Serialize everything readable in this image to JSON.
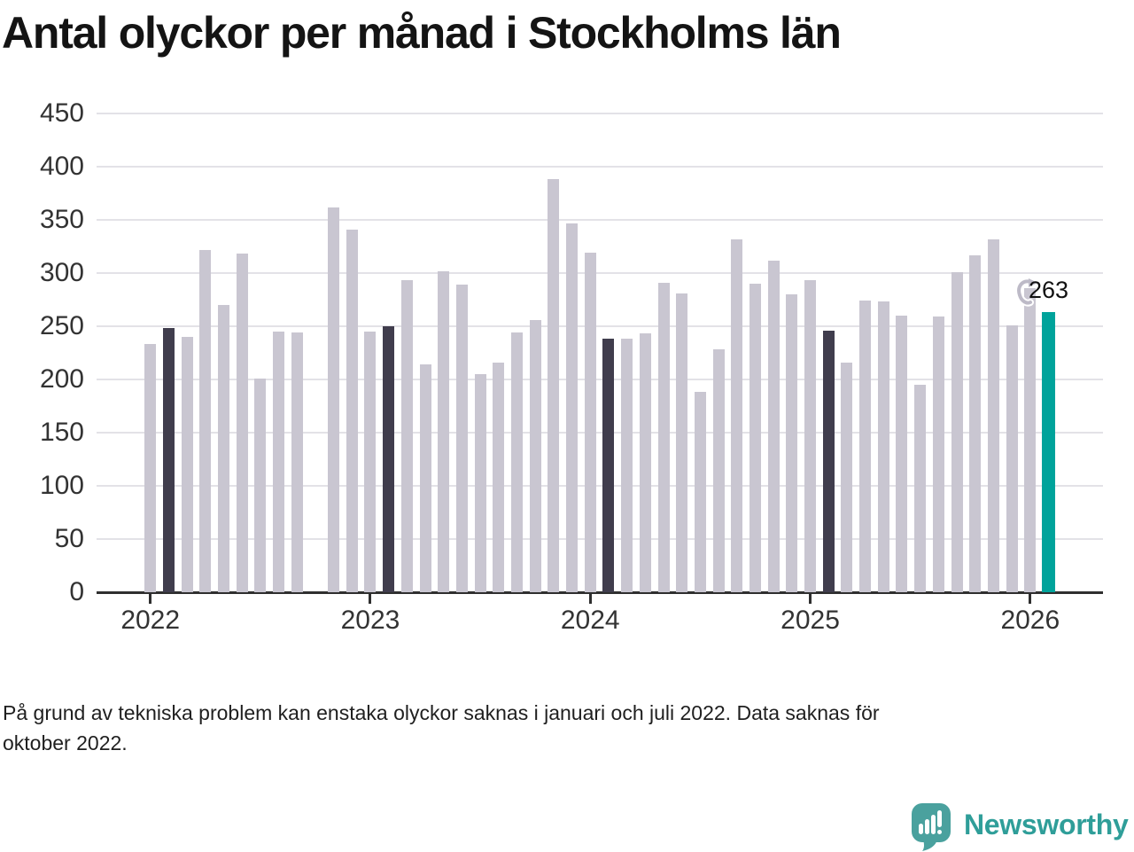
{
  "title": "Antal olyckor per månad i Stockholms län",
  "annotation": {
    "value_label": "263"
  },
  "footnote": {
    "line1": "På grund av tekniska problem kan enstaka olyckor saknas i januari och juli 2022. Data saknas för",
    "line2": "oktober 2022."
  },
  "branding": {
    "name": "Newsworthy",
    "icon": "newsworthy-speech-bubble-chart-icon"
  },
  "colors": {
    "bar": "#c9c6d1",
    "bar_dark": "#403d4d",
    "bar_current": "#00a39b",
    "grid": "#e3e2e7",
    "axis": "#2f2f2f",
    "brand_teal": "#4aa19e",
    "brand_text": "#2f9e99"
  },
  "chart_data": {
    "type": "bar",
    "title": "Antal olyckor per månad i Stockholms län",
    "xlabel": "",
    "ylabel": "",
    "ylim": [
      0,
      450
    ],
    "yticks": [
      0,
      50,
      100,
      150,
      200,
      250,
      300,
      350,
      400,
      450
    ],
    "year_ticks": [
      "2022",
      "2023",
      "2024",
      "2025",
      "2026"
    ],
    "grid": "horizontal",
    "legend_position": "none",
    "months": [
      {
        "month": "2022-01",
        "value": 233,
        "role": "normal"
      },
      {
        "month": "2022-02",
        "value": 248,
        "role": "dark"
      },
      {
        "month": "2022-03",
        "value": 240,
        "role": "normal"
      },
      {
        "month": "2022-04",
        "value": 322,
        "role": "normal"
      },
      {
        "month": "2022-05",
        "value": 270,
        "role": "normal"
      },
      {
        "month": "2022-06",
        "value": 318,
        "role": "normal"
      },
      {
        "month": "2022-07",
        "value": 201,
        "role": "normal"
      },
      {
        "month": "2022-08",
        "value": 245,
        "role": "normal"
      },
      {
        "month": "2022-09",
        "value": 244,
        "role": "normal"
      },
      {
        "month": "2022-10",
        "value": null,
        "role": "missing"
      },
      {
        "month": "2022-11",
        "value": 362,
        "role": "normal"
      },
      {
        "month": "2022-12",
        "value": 341,
        "role": "normal"
      },
      {
        "month": "2023-01",
        "value": 245,
        "role": "normal"
      },
      {
        "month": "2023-02",
        "value": 250,
        "role": "dark"
      },
      {
        "month": "2023-03",
        "value": 293,
        "role": "normal"
      },
      {
        "month": "2023-04",
        "value": 214,
        "role": "normal"
      },
      {
        "month": "2023-05",
        "value": 302,
        "role": "normal"
      },
      {
        "month": "2023-06",
        "value": 289,
        "role": "normal"
      },
      {
        "month": "2023-07",
        "value": 205,
        "role": "normal"
      },
      {
        "month": "2023-08",
        "value": 216,
        "role": "normal"
      },
      {
        "month": "2023-09",
        "value": 244,
        "role": "normal"
      },
      {
        "month": "2023-10",
        "value": 256,
        "role": "normal"
      },
      {
        "month": "2023-11",
        "value": 388,
        "role": "normal"
      },
      {
        "month": "2023-12",
        "value": 347,
        "role": "normal"
      },
      {
        "month": "2024-01",
        "value": 319,
        "role": "normal"
      },
      {
        "month": "2024-02",
        "value": 238,
        "role": "dark"
      },
      {
        "month": "2024-03",
        "value": 238,
        "role": "normal"
      },
      {
        "month": "2024-04",
        "value": 243,
        "role": "normal"
      },
      {
        "month": "2024-05",
        "value": 291,
        "role": "normal"
      },
      {
        "month": "2024-06",
        "value": 281,
        "role": "normal"
      },
      {
        "month": "2024-07",
        "value": 188,
        "role": "normal"
      },
      {
        "month": "2024-08",
        "value": 228,
        "role": "normal"
      },
      {
        "month": "2024-09",
        "value": 332,
        "role": "normal"
      },
      {
        "month": "2024-10",
        "value": 290,
        "role": "normal"
      },
      {
        "month": "2024-11",
        "value": 312,
        "role": "normal"
      },
      {
        "month": "2024-12",
        "value": 280,
        "role": "normal"
      },
      {
        "month": "2025-01",
        "value": 293,
        "role": "normal"
      },
      {
        "month": "2025-02",
        "value": 246,
        "role": "dark"
      },
      {
        "month": "2025-03",
        "value": 216,
        "role": "normal"
      },
      {
        "month": "2025-04",
        "value": 274,
        "role": "normal"
      },
      {
        "month": "2025-05",
        "value": 273,
        "role": "normal"
      },
      {
        "month": "2025-06",
        "value": 260,
        "role": "normal"
      },
      {
        "month": "2025-07",
        "value": 195,
        "role": "normal"
      },
      {
        "month": "2025-08",
        "value": 259,
        "role": "normal"
      },
      {
        "month": "2025-09",
        "value": 301,
        "role": "normal"
      },
      {
        "month": "2025-10",
        "value": 317,
        "role": "normal"
      },
      {
        "month": "2025-11",
        "value": 332,
        "role": "normal"
      },
      {
        "month": "2025-12",
        "value": 251,
        "role": "normal"
      },
      {
        "month": "2026-01",
        "value": 286,
        "role": "normal"
      },
      {
        "month": "2026-02",
        "value": 263,
        "role": "current"
      }
    ]
  }
}
